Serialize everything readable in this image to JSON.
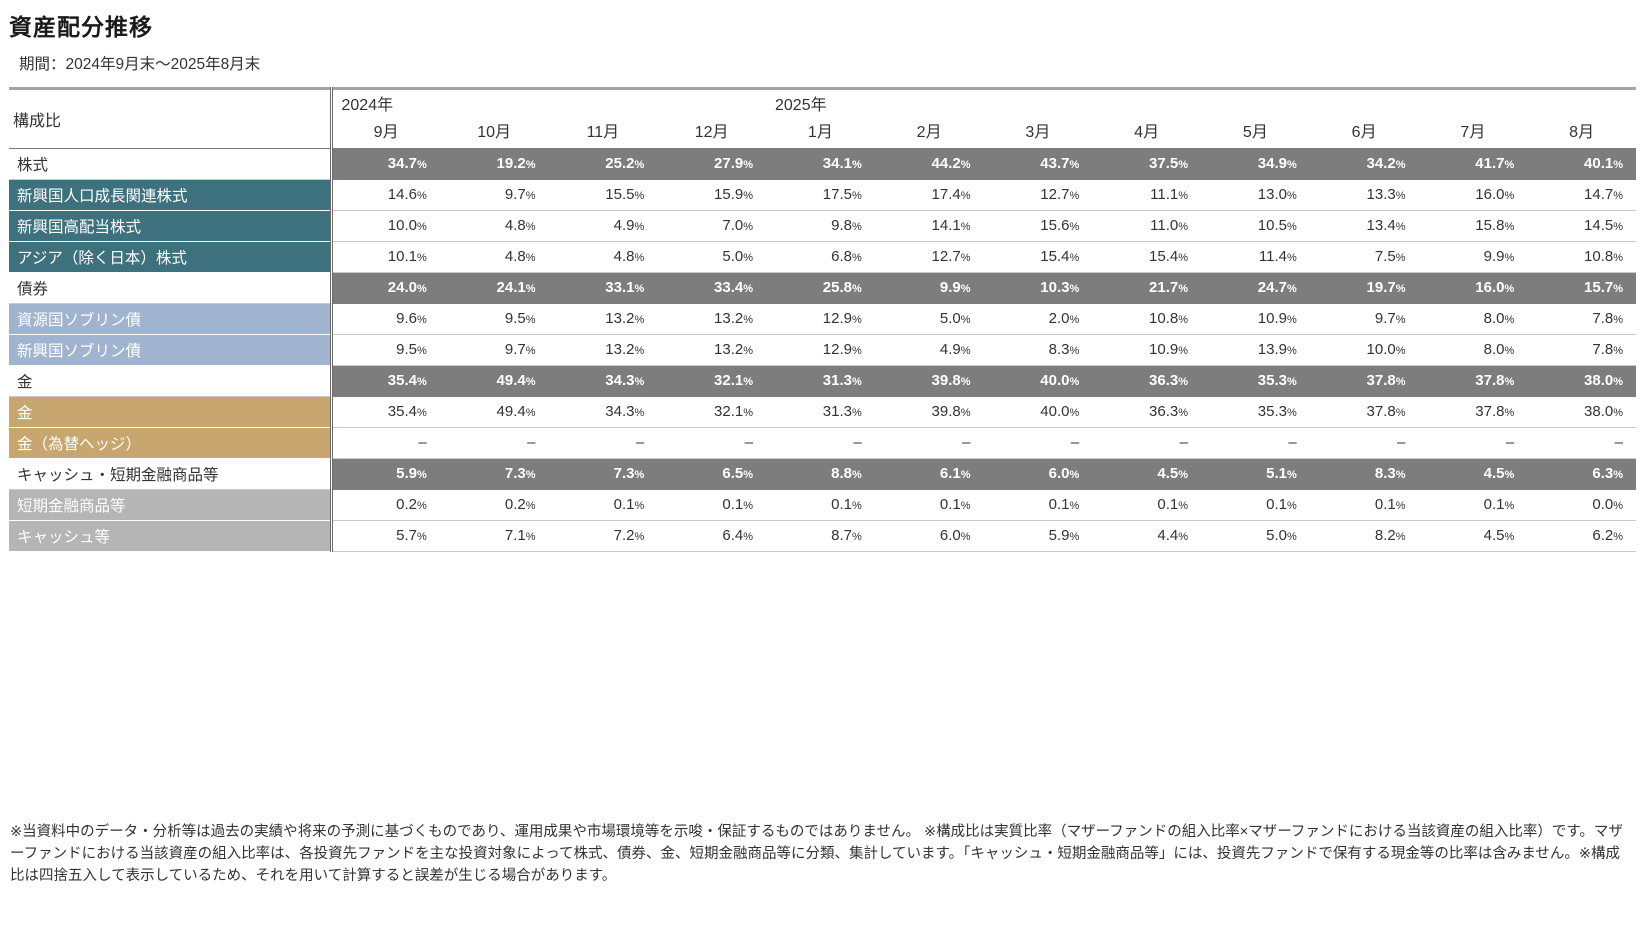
{
  "page": {
    "title": "資産配分推移",
    "subtitle": "期間：2024年9月末～2025年8月末",
    "footnote": "※当資料中のデータ・分析等は過去の実績や将来の予測に基づくものであり、運用成果や市場環境等を示唆・保証するものではありません。 ※構成比は実質比率（マザーファンドの組入比率×マザーファンドにおける当該資産の組入比率）です。マザーファンドにおける当該資産の組入比率は、各投資先ファンドを主な投資対象によって株式、債券、金、短期金融商品等に分類、集計しています。「キャッシュ・短期金融商品等」には、投資先ファンドで保有する現金等の比率は含みません。※構成比は四捨五入して表示しているため、それを用いて計算すると誤差が生じる場合があります。"
  },
  "chart_data": {
    "type": "table",
    "title": "資産配分推移",
    "period": "2024年9月末～2025年8月末",
    "corner_label": "構成比",
    "year_groups": [
      {
        "label": "2024年",
        "span": 4
      },
      {
        "label": "2025年",
        "span": 8
      }
    ],
    "months": [
      "9月",
      "10月",
      "11月",
      "12月",
      "1月",
      "2月",
      "3月",
      "4月",
      "5月",
      "6月",
      "7月",
      "8月"
    ],
    "rows": [
      {
        "label": "株式",
        "kind": "category",
        "color": "band",
        "values": [
          "34.7%",
          "19.2%",
          "25.2%",
          "27.9%",
          "34.1%",
          "44.2%",
          "43.7%",
          "37.5%",
          "34.9%",
          "34.2%",
          "41.7%",
          "40.1%"
        ]
      },
      {
        "label": "新興国人口成長関連株式",
        "kind": "sub",
        "color": "teal",
        "values": [
          "14.6%",
          "9.7%",
          "15.5%",
          "15.9%",
          "17.5%",
          "17.4%",
          "12.7%",
          "11.1%",
          "13.0%",
          "13.3%",
          "16.0%",
          "14.7%"
        ]
      },
      {
        "label": "新興国高配当株式",
        "kind": "sub",
        "color": "teal",
        "values": [
          "10.0%",
          "4.8%",
          "4.9%",
          "7.0%",
          "9.8%",
          "14.1%",
          "15.6%",
          "11.0%",
          "10.5%",
          "13.4%",
          "15.8%",
          "14.5%"
        ]
      },
      {
        "label": "アジア（除く日本）株式",
        "kind": "sub",
        "color": "teal",
        "values": [
          "10.1%",
          "4.8%",
          "4.8%",
          "5.0%",
          "6.8%",
          "12.7%",
          "15.4%",
          "15.4%",
          "11.4%",
          "7.5%",
          "9.9%",
          "10.8%"
        ]
      },
      {
        "label": "債券",
        "kind": "category",
        "color": "band",
        "values": [
          "24.0%",
          "24.1%",
          "33.1%",
          "33.4%",
          "25.8%",
          "9.9%",
          "10.3%",
          "21.7%",
          "24.7%",
          "19.7%",
          "16.0%",
          "15.7%"
        ]
      },
      {
        "label": "資源国ソブリン債",
        "kind": "sub",
        "color": "blue",
        "values": [
          "9.6%",
          "9.5%",
          "13.2%",
          "13.2%",
          "12.9%",
          "5.0%",
          "2.0%",
          "10.8%",
          "10.9%",
          "9.7%",
          "8.0%",
          "7.8%"
        ]
      },
      {
        "label": "新興国ソブリン債",
        "kind": "sub",
        "color": "blue",
        "values": [
          "9.5%",
          "9.7%",
          "13.2%",
          "13.2%",
          "12.9%",
          "4.9%",
          "8.3%",
          "10.9%",
          "13.9%",
          "10.0%",
          "8.0%",
          "7.8%"
        ]
      },
      {
        "label": "金",
        "kind": "category",
        "color": "band",
        "values": [
          "35.4%",
          "49.4%",
          "34.3%",
          "32.1%",
          "31.3%",
          "39.8%",
          "40.0%",
          "36.3%",
          "35.3%",
          "37.8%",
          "37.8%",
          "38.0%"
        ]
      },
      {
        "label": "金",
        "kind": "sub",
        "color": "gold",
        "values": [
          "35.4%",
          "49.4%",
          "34.3%",
          "32.1%",
          "31.3%",
          "39.8%",
          "40.0%",
          "36.3%",
          "35.3%",
          "37.8%",
          "37.8%",
          "38.0%"
        ]
      },
      {
        "label": "金（為替ヘッジ）",
        "kind": "sub",
        "color": "gold",
        "values": [
          "–",
          "–",
          "–",
          "–",
          "–",
          "–",
          "–",
          "–",
          "–",
          "–",
          "–",
          "–"
        ]
      },
      {
        "label": "キャッシュ・短期金融商品等",
        "kind": "category",
        "color": "band",
        "values": [
          "5.9%",
          "7.3%",
          "7.3%",
          "6.5%",
          "8.8%",
          "6.1%",
          "6.0%",
          "4.5%",
          "5.1%",
          "8.3%",
          "4.5%",
          "6.3%"
        ]
      },
      {
        "label": "短期金融商品等",
        "kind": "sub",
        "color": "gray",
        "values": [
          "0.2%",
          "0.2%",
          "0.1%",
          "0.1%",
          "0.1%",
          "0.1%",
          "0.1%",
          "0.1%",
          "0.1%",
          "0.1%",
          "0.1%",
          "0.0%"
        ]
      },
      {
        "label": "キャッシュ等",
        "kind": "sub",
        "color": "gray",
        "values": [
          "5.7%",
          "7.1%",
          "7.2%",
          "6.4%",
          "8.7%",
          "6.0%",
          "5.9%",
          "4.4%",
          "5.0%",
          "8.2%",
          "4.5%",
          "6.2%"
        ]
      }
    ],
    "colors": {
      "band": "#7d7d7d",
      "teal": "#3e717e",
      "blue": "#a1b4cf",
      "gold": "#c7a670",
      "gray": "#b5b5b5"
    }
  }
}
